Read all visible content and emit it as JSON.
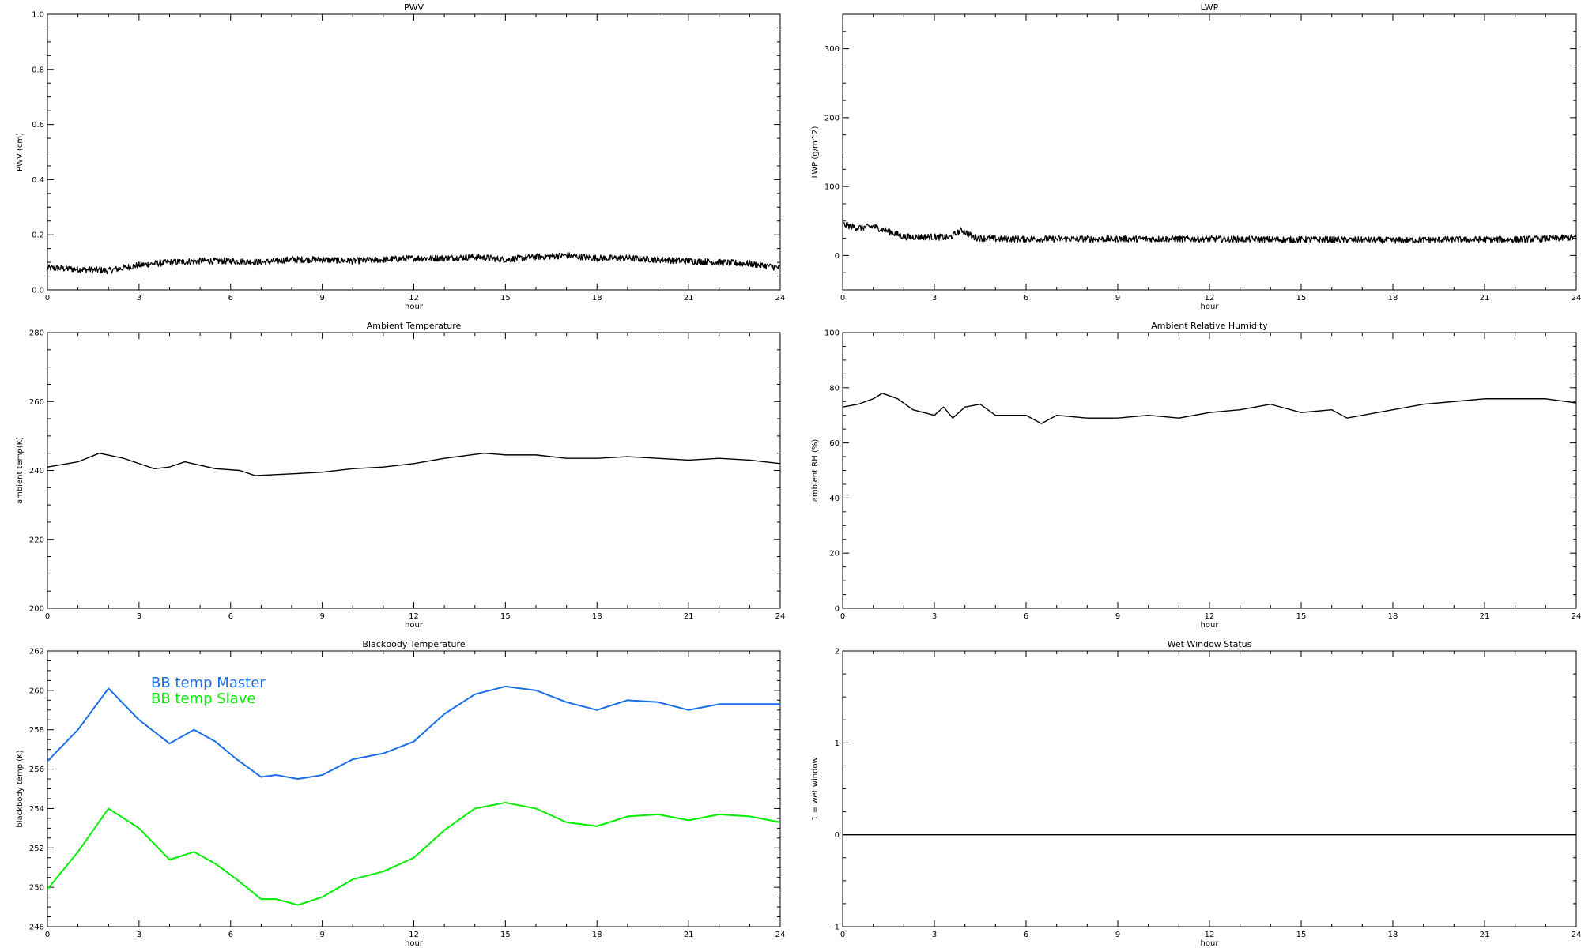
{
  "chart_data": [
    {
      "type": "line",
      "title": "PWV",
      "xlabel": "hour",
      "ylabel": "PWV (cm)",
      "xlim": [
        0,
        24
      ],
      "ylim": [
        0,
        1.0
      ],
      "xticks": [
        0,
        3,
        6,
        9,
        12,
        15,
        18,
        21,
        24
      ],
      "yticks": [
        0.0,
        0.2,
        0.4,
        0.6,
        0.8,
        1.0
      ],
      "ytick_labels": [
        "0.0",
        "0.2",
        "0.4",
        "0.6",
        "0.8",
        "1.0"
      ],
      "grid": false,
      "series": [
        {
          "color": "#000000",
          "noisy": true,
          "x": [
            0,
            1,
            2,
            3,
            4,
            5,
            6,
            7,
            8,
            9,
            10,
            11,
            12,
            13,
            14,
            15,
            16,
            17,
            18,
            19,
            20,
            21,
            22,
            23,
            24
          ],
          "y": [
            0.08,
            0.075,
            0.07,
            0.09,
            0.1,
            0.105,
            0.105,
            0.1,
            0.11,
            0.11,
            0.105,
            0.11,
            0.115,
            0.115,
            0.12,
            0.11,
            0.12,
            0.125,
            0.115,
            0.115,
            0.11,
            0.105,
            0.1,
            0.095,
            0.08
          ]
        }
      ]
    },
    {
      "type": "line",
      "title": "LWP",
      "xlabel": "hour",
      "ylabel": "LWP (g/m^2)",
      "xlim": [
        0,
        24
      ],
      "ylim": [
        -50,
        350
      ],
      "xticks": [
        0,
        3,
        6,
        9,
        12,
        15,
        18,
        21,
        24
      ],
      "yticks": [
        0,
        100,
        200,
        300
      ],
      "ytick_labels": [
        "0",
        "100",
        "200",
        "300"
      ],
      "grid": false,
      "series": [
        {
          "color": "#000000",
          "noisy": true,
          "x": [
            0,
            0.5,
            1,
            1.5,
            2,
            3,
            3.5,
            3.9,
            4.3,
            5,
            6,
            8,
            10,
            12,
            14,
            16,
            18,
            20,
            22,
            24
          ],
          "y": [
            45,
            40,
            42,
            35,
            27,
            27,
            26,
            37,
            26,
            24,
            24,
            24,
            24,
            24,
            23,
            23,
            22,
            23,
            23,
            26
          ]
        }
      ]
    },
    {
      "type": "line",
      "title": "Ambient Temperature",
      "xlabel": "hour",
      "ylabel": "ambient temp(K)",
      "xlim": [
        0,
        24
      ],
      "ylim": [
        200,
        280
      ],
      "xticks": [
        0,
        3,
        6,
        9,
        12,
        15,
        18,
        21,
        24
      ],
      "yticks": [
        200,
        220,
        240,
        260,
        280
      ],
      "ytick_labels": [
        "200",
        "220",
        "240",
        "260",
        "280"
      ],
      "grid": false,
      "series": [
        {
          "color": "#000000",
          "noisy": false,
          "x": [
            0,
            1,
            1.7,
            2.5,
            3.5,
            4,
            4.5,
            5.5,
            6.3,
            6.8,
            8,
            9,
            10,
            11,
            12,
            13,
            14.3,
            15,
            16,
            17,
            18,
            19,
            20,
            21,
            22,
            23,
            24
          ],
          "y": [
            241,
            242.5,
            245,
            243.5,
            240.5,
            241,
            242.5,
            240.5,
            240,
            238.5,
            239,
            239.5,
            240.5,
            241,
            242,
            243.5,
            245,
            244.5,
            244.5,
            243.5,
            243.5,
            244,
            243.5,
            243,
            243.5,
            243,
            242
          ]
        }
      ]
    },
    {
      "type": "line",
      "title": "Ambient Relative Humidity",
      "xlabel": "hour",
      "ylabel": "ambient RH (%)",
      "xlim": [
        0,
        24
      ],
      "ylim": [
        0,
        100
      ],
      "xticks": [
        0,
        3,
        6,
        9,
        12,
        15,
        18,
        21,
        24
      ],
      "yticks": [
        0,
        20,
        40,
        60,
        80,
        100
      ],
      "ytick_labels": [
        "0",
        "20",
        "40",
        "60",
        "80",
        "100"
      ],
      "grid": false,
      "series": [
        {
          "color": "#000000",
          "noisy": false,
          "x": [
            0,
            0.5,
            1,
            1.3,
            1.8,
            2.3,
            3,
            3.3,
            3.6,
            4,
            4.5,
            5,
            6,
            6.5,
            7,
            8,
            9,
            10,
            11,
            12,
            13,
            14,
            15,
            16,
            16.5,
            17,
            18,
            19,
            20,
            21,
            22,
            23,
            24
          ],
          "y": [
            73,
            74,
            76,
            78,
            76,
            72,
            70,
            73,
            69,
            73,
            74,
            70,
            70,
            67,
            70,
            69,
            69,
            70,
            69,
            71,
            72,
            74,
            71,
            72,
            69,
            70,
            72,
            74,
            75,
            76,
            76,
            76,
            74.5
          ]
        }
      ]
    },
    {
      "type": "line",
      "title": "Blackbody Temperature",
      "xlabel": "hour",
      "ylabel": "blackbody temp (K)",
      "xlim": [
        0,
        24
      ],
      "ylim": [
        248,
        262
      ],
      "xticks": [
        0,
        3,
        6,
        9,
        12,
        15,
        18,
        21,
        24
      ],
      "yticks": [
        248,
        250,
        252,
        254,
        256,
        258,
        260,
        262
      ],
      "ytick_labels": [
        "248",
        "250",
        "252",
        "254",
        "256",
        "258",
        "260",
        "262"
      ],
      "grid": false,
      "legend": "top-left",
      "series": [
        {
          "name": "BB temp Master",
          "color": "#1a6fe8",
          "noisy": false,
          "x": [
            0,
            1,
            2,
            3,
            4,
            4.8,
            5.5,
            6.2,
            7,
            7.5,
            8.2,
            9,
            10,
            11,
            12,
            13,
            14,
            15,
            16,
            17,
            18,
            19,
            20,
            21,
            22,
            23,
            24
          ],
          "y": [
            256.4,
            258,
            260.1,
            258.5,
            257.3,
            258,
            257.4,
            256.5,
            255.6,
            255.7,
            255.5,
            255.7,
            256.5,
            256.8,
            257.4,
            258.8,
            259.8,
            260.2,
            260,
            259.4,
            259,
            259.5,
            259.4,
            259,
            259.3,
            259.3,
            259.3
          ]
        },
        {
          "name": "BB temp Slave",
          "color": "#00ee00",
          "noisy": false,
          "x": [
            0,
            1,
            2,
            3,
            4,
            4.8,
            5.5,
            6.2,
            7,
            7.5,
            8.2,
            9,
            10,
            11,
            12,
            13,
            14,
            15,
            16,
            17,
            18,
            19,
            20,
            21,
            22,
            23,
            24
          ],
          "y": [
            249.9,
            251.8,
            254,
            253,
            251.4,
            251.8,
            251.2,
            250.4,
            249.4,
            249.4,
            249.1,
            249.5,
            250.4,
            250.8,
            251.5,
            252.9,
            254,
            254.3,
            254,
            253.3,
            253.1,
            253.6,
            253.7,
            253.4,
            253.7,
            253.6,
            253.3
          ]
        }
      ]
    },
    {
      "type": "line",
      "title": "Wet Window Status",
      "xlabel": "hour",
      "ylabel": "1 = wet window",
      "xlim": [
        0,
        24
      ],
      "ylim": [
        -1,
        2
      ],
      "xticks": [
        0,
        3,
        6,
        9,
        12,
        15,
        18,
        21,
        24
      ],
      "yticks": [
        -1,
        0,
        1,
        2
      ],
      "ytick_labels": [
        "-1",
        "0",
        "1",
        "2"
      ],
      "grid": false,
      "series": [
        {
          "color": "#000000",
          "noisy": false,
          "x": [
            0,
            24
          ],
          "y": [
            0,
            0
          ]
        }
      ]
    }
  ]
}
